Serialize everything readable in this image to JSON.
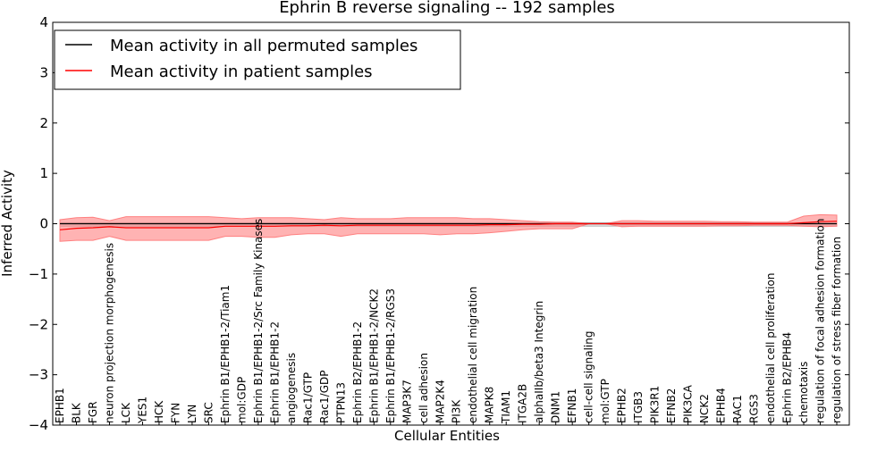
{
  "chart_data": {
    "type": "line",
    "title": "Ephrin B reverse signaling -- 192 samples",
    "xlabel": "Cellular Entities",
    "ylabel": "Inferred Activity",
    "ylim": [
      -4,
      4
    ],
    "yticks": [
      -4,
      -3,
      -2,
      -1,
      0,
      1,
      2,
      3,
      4
    ],
    "ytick_labels": [
      "−4",
      "−3",
      "−2",
      "−1",
      "0",
      "1",
      "2",
      "3",
      "4"
    ],
    "legend_position": "top-left",
    "categories": [
      "EPHB1",
      "BLK",
      "FGR",
      "neuron projection morphogenesis",
      "LCK",
      "YES1",
      "HCK",
      "FYN",
      "LYN",
      "SRC",
      "Ephrin B1/EPHB1-2/Tiam1",
      "mol:GDP",
      "Ephrin B1/EPHB1-2/Src Family Kinases",
      "Ephrin B1/EPHB1-2",
      "angiogenesis",
      "Rac1/GTP",
      "Rac1/GDP",
      "PTPN13",
      "Ephrin B2/EPHB1-2",
      "Ephrin B1/EPHB1-2/NCK2",
      "Ephrin B1/EPHB1-2/RGS3",
      "MAP3K7",
      "cell adhesion",
      "MAP2K4",
      "PI3K",
      "endothelial cell migration",
      "MAPK8",
      "TIAM1",
      "ITGA2B",
      "alphaIIb/beta3 Integrin",
      "DNM1",
      "EFNB1",
      "cell-cell signaling",
      "mol:GTP",
      "EPHB2",
      "ITGB3",
      "PIK3R1",
      "EFNB2",
      "PIK3CA",
      "NCK2",
      "EPHB4",
      "RAC1",
      "RGS3",
      "endothelial cell proliferation",
      "Ephrin B2/EPHB4",
      "chemotaxis",
      "regulation of focal adhesion formation",
      "regulation of stress fiber formation"
    ],
    "series": [
      {
        "name": "Mean activity in all permuted samples",
        "color": "#000000",
        "band_color": "#bbbbbb",
        "values": [
          0.0,
          0.0,
          0.0,
          0.0,
          0.0,
          0.0,
          0.0,
          0.0,
          0.0,
          0.0,
          0.0,
          0.0,
          0.0,
          0.0,
          0.0,
          0.0,
          0.0,
          0.0,
          0.0,
          0.0,
          0.0,
          0.0,
          0.0,
          0.0,
          0.0,
          0.0,
          0.0,
          0.0,
          0.0,
          0.0,
          0.0,
          0.0,
          0.0,
          0.0,
          0.0,
          0.0,
          0.0,
          0.0,
          0.0,
          0.0,
          0.0,
          0.0,
          0.0,
          0.0,
          0.0,
          0.0,
          0.0,
          0.0
        ],
        "upper": [
          0.02,
          0.02,
          0.02,
          0.02,
          0.02,
          0.02,
          0.02,
          0.02,
          0.02,
          0.02,
          0.02,
          0.02,
          0.02,
          0.02,
          0.02,
          0.02,
          0.02,
          0.02,
          0.02,
          0.02,
          0.02,
          0.02,
          0.02,
          0.02,
          0.02,
          0.02,
          0.02,
          0.02,
          0.02,
          0.02,
          0.02,
          0.02,
          0.02,
          0.02,
          0.02,
          0.02,
          0.02,
          0.02,
          0.02,
          0.02,
          0.02,
          0.02,
          0.02,
          0.02,
          0.02,
          0.02,
          0.02,
          0.02
        ],
        "lower": [
          -0.05,
          -0.05,
          -0.05,
          -0.05,
          -0.05,
          -0.05,
          -0.05,
          -0.05,
          -0.05,
          -0.05,
          -0.05,
          -0.05,
          -0.05,
          -0.05,
          -0.05,
          -0.05,
          -0.05,
          -0.05,
          -0.05,
          -0.05,
          -0.05,
          -0.05,
          -0.05,
          -0.05,
          -0.05,
          -0.05,
          -0.05,
          -0.05,
          -0.05,
          -0.05,
          -0.05,
          -0.05,
          -0.05,
          -0.05,
          -0.05,
          -0.05,
          -0.05,
          -0.05,
          -0.05,
          -0.05,
          -0.05,
          -0.05,
          -0.05,
          -0.05,
          -0.05,
          -0.05,
          -0.05,
          -0.05
        ]
      },
      {
        "name": "Mean activity in patient samples",
        "color": "#ff0000",
        "band_color": "#ff8080",
        "values": [
          -0.12,
          -0.09,
          -0.08,
          -0.06,
          -0.08,
          -0.08,
          -0.08,
          -0.08,
          -0.08,
          -0.08,
          -0.05,
          -0.05,
          -0.05,
          -0.05,
          -0.04,
          -0.04,
          -0.03,
          -0.04,
          -0.03,
          -0.03,
          -0.03,
          -0.03,
          -0.03,
          -0.03,
          -0.03,
          -0.03,
          -0.02,
          -0.02,
          -0.01,
          -0.01,
          0.0,
          0.0,
          0.0,
          0.0,
          0.0,
          0.0,
          0.0,
          0.0,
          0.0,
          0.0,
          0.0,
          0.0,
          0.0,
          0.0,
          0.0,
          0.02,
          0.04,
          0.05
        ],
        "upper": [
          0.08,
          0.12,
          0.13,
          0.06,
          0.14,
          0.14,
          0.14,
          0.14,
          0.14,
          0.14,
          0.12,
          0.1,
          0.12,
          0.12,
          0.12,
          0.1,
          0.08,
          0.12,
          0.1,
          0.1,
          0.1,
          0.12,
          0.12,
          0.12,
          0.12,
          0.1,
          0.1,
          0.08,
          0.06,
          0.04,
          0.03,
          0.03,
          0.0,
          0.0,
          0.06,
          0.06,
          0.05,
          0.05,
          0.05,
          0.05,
          0.04,
          0.04,
          0.03,
          0.03,
          0.03,
          0.15,
          0.18,
          0.17
        ],
        "lower": [
          -0.35,
          -0.33,
          -0.33,
          -0.25,
          -0.33,
          -0.33,
          -0.33,
          -0.33,
          -0.33,
          -0.33,
          -0.25,
          -0.25,
          -0.27,
          -0.27,
          -0.22,
          -0.2,
          -0.2,
          -0.25,
          -0.2,
          -0.2,
          -0.2,
          -0.2,
          -0.2,
          -0.22,
          -0.2,
          -0.2,
          -0.18,
          -0.15,
          -0.12,
          -0.1,
          -0.1,
          -0.1,
          0.0,
          0.0,
          -0.06,
          -0.05,
          -0.05,
          -0.05,
          -0.05,
          -0.05,
          -0.04,
          -0.04,
          -0.03,
          -0.03,
          -0.03,
          -0.05,
          -0.06,
          -0.05
        ]
      }
    ]
  }
}
